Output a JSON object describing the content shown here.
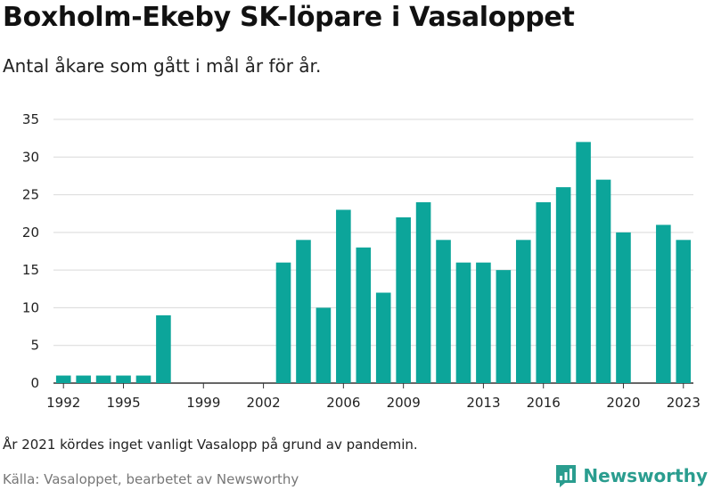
{
  "title": "Boxholm-Ekeby SK-löpare i Vasaloppet",
  "subtitle": "Antal åkare som gått i mål år för år.",
  "note": "År 2021 kördes inget vanligt Vasalopp på grund av pandemin.",
  "source": "Källa: Vasaloppet, bearbetet av Newsworthy",
  "brand": {
    "name": "Newsworthy",
    "color": "#2a9d8f",
    "icon": "newsworthy-logo-icon"
  },
  "colors": {
    "bar": "#0ca59a",
    "grid": "#d9d9d9",
    "axis": "#333333"
  },
  "chart_data": {
    "type": "bar",
    "categories": [
      "1992",
      "1993",
      "1994",
      "1995",
      "1996",
      "1997",
      "1998",
      "1999",
      "2000",
      "2001",
      "2002",
      "2003",
      "2004",
      "2005",
      "2006",
      "2007",
      "2008",
      "2009",
      "2010",
      "2011",
      "2012",
      "2013",
      "2014",
      "2015",
      "2016",
      "2017",
      "2018",
      "2019",
      "2020",
      "2021",
      "2022",
      "2023"
    ],
    "values": [
      1,
      1,
      1,
      1,
      1,
      9,
      0,
      0,
      0,
      0,
      0,
      16,
      19,
      10,
      23,
      18,
      12,
      22,
      24,
      19,
      16,
      16,
      15,
      19,
      24,
      26,
      32,
      27,
      20,
      0,
      21,
      19
    ],
    "ylim": [
      0,
      35
    ],
    "yticks": [
      0,
      5,
      10,
      15,
      20,
      25,
      30,
      35
    ],
    "xticks": [
      "1992",
      "1995",
      "1999",
      "2002",
      "2006",
      "2009",
      "2013",
      "2016",
      "2020",
      "2023"
    ],
    "grid": true
  }
}
